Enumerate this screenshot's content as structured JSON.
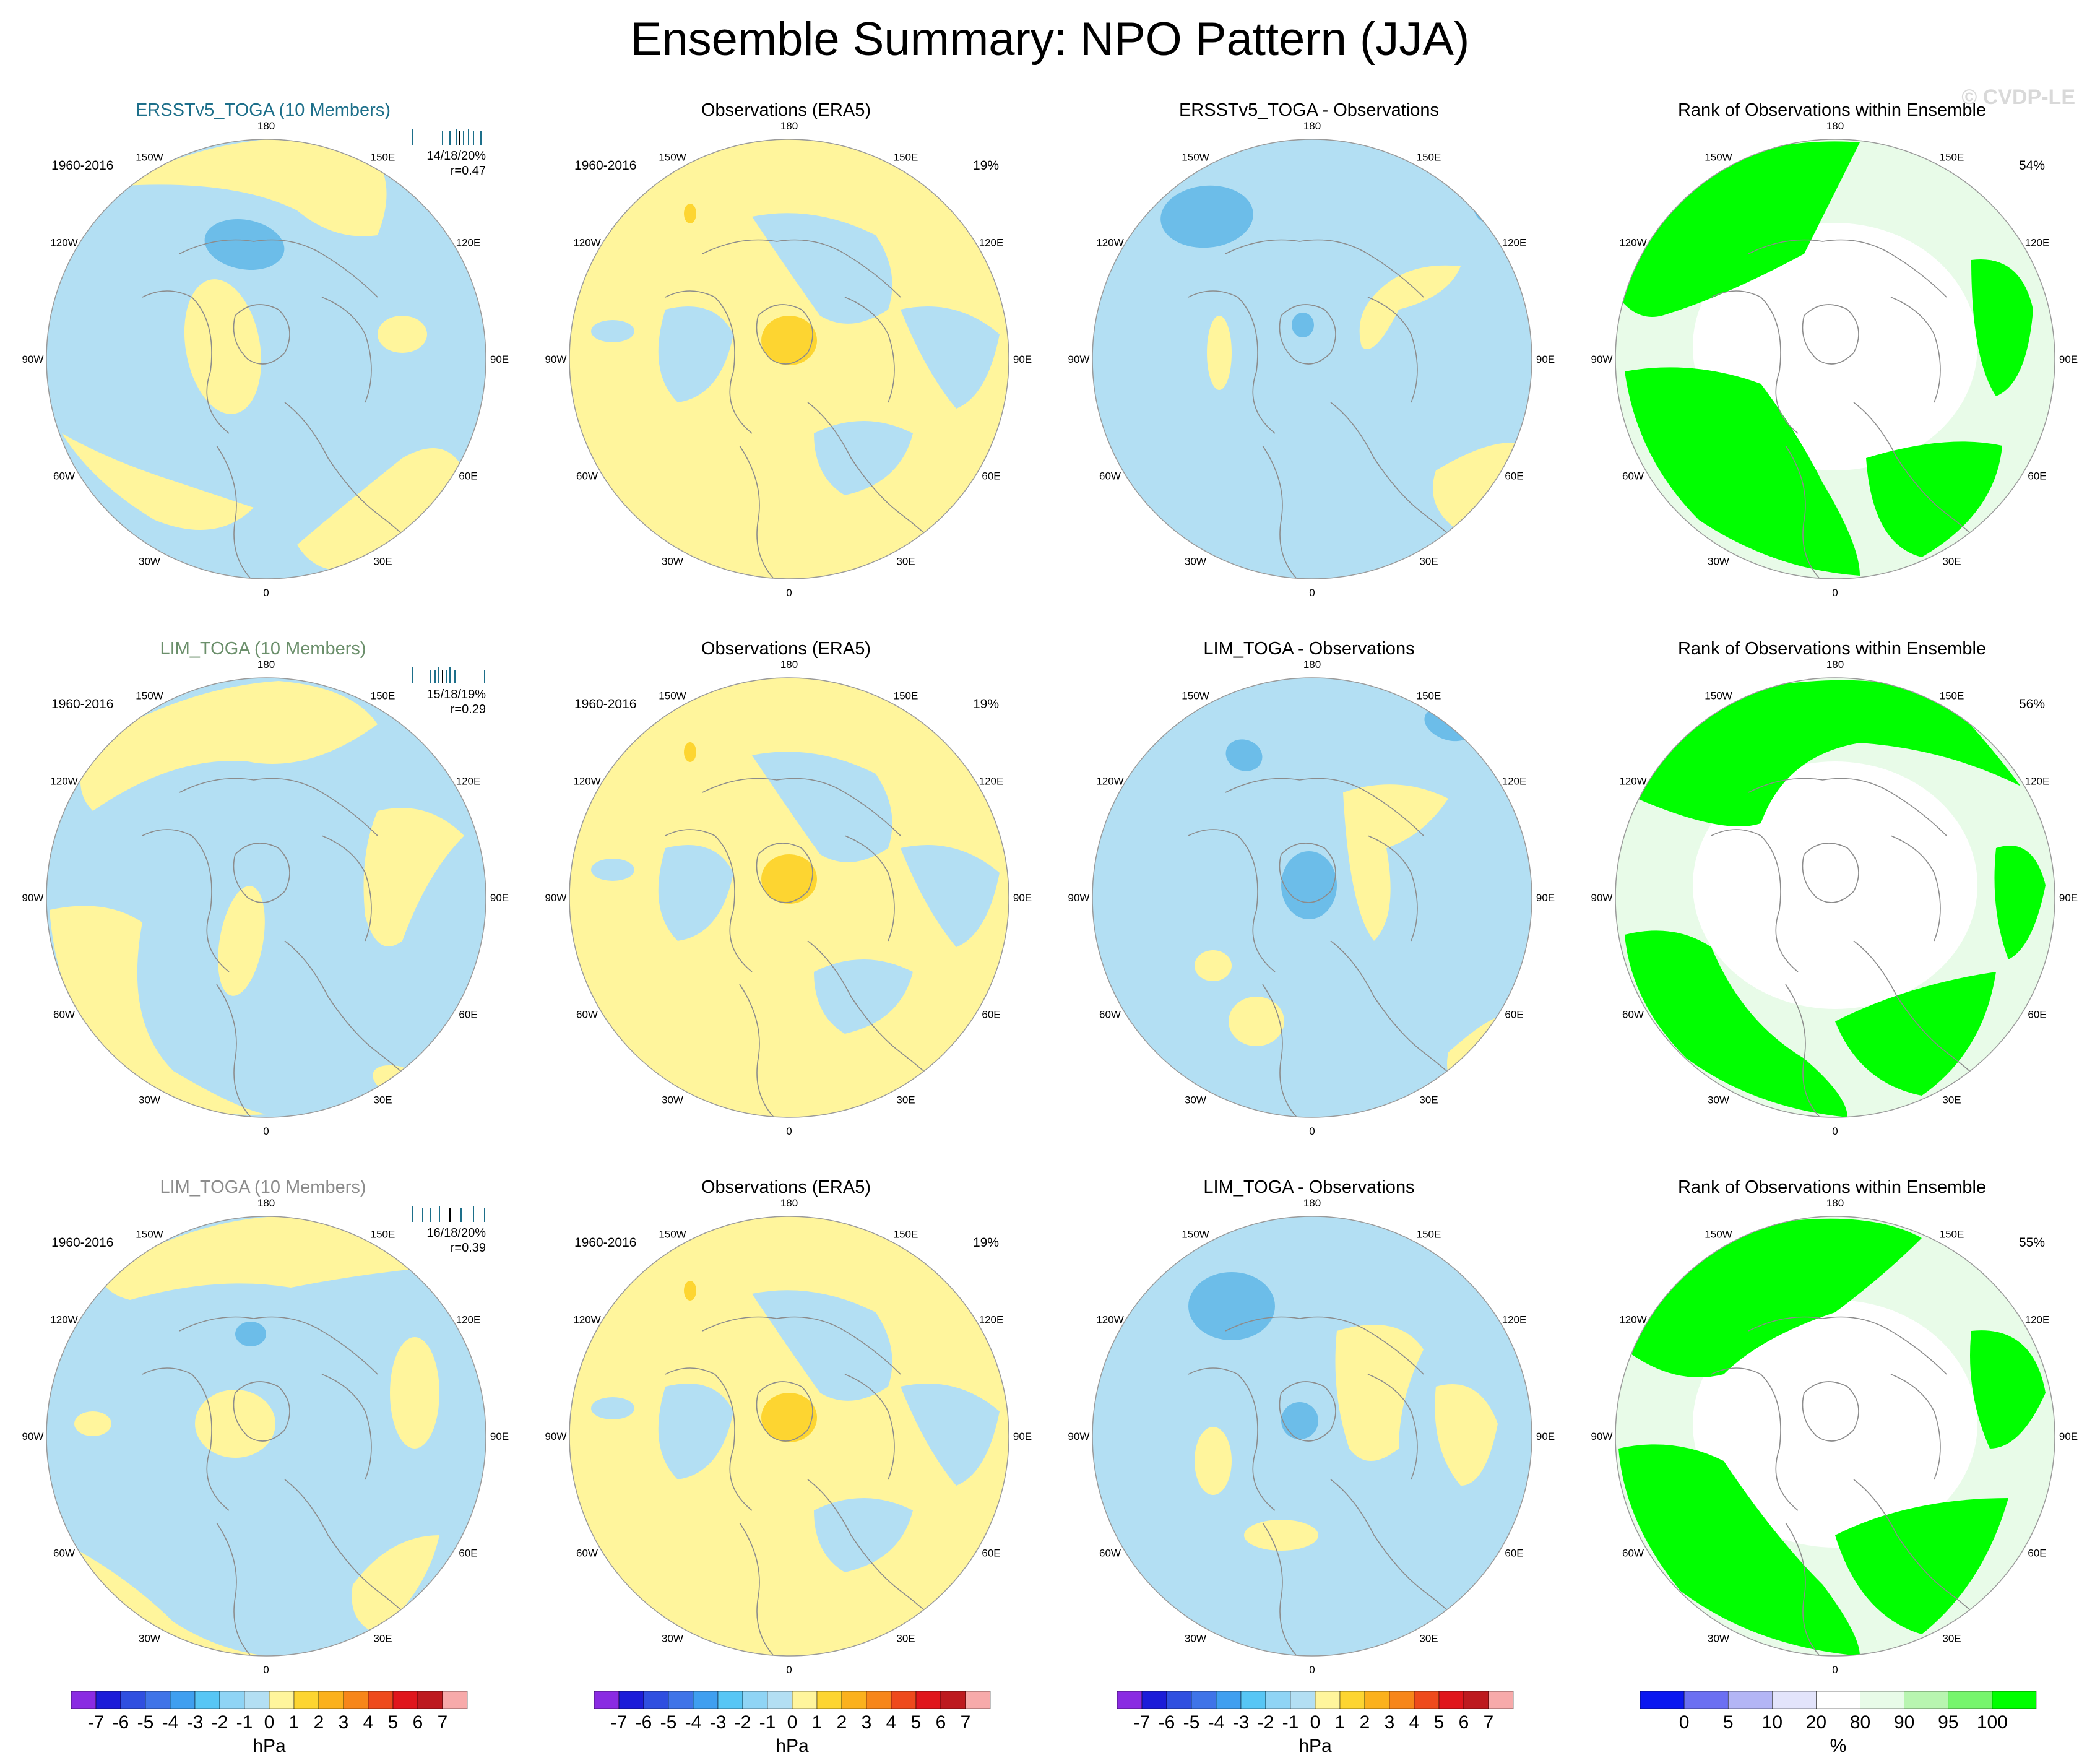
{
  "title": "Ensemble Summary: NPO Pattern (JJA)",
  "watermark": "© CVDP-LE",
  "longitude_labels": [
    "180",
    "150E",
    "120E",
    "90E",
    "60E",
    "30E",
    "0",
    "30W",
    "60W",
    "90W",
    "120W",
    "150W"
  ],
  "colors": {
    "negative": "#b3dff3",
    "negative_strong": "#6cbde9",
    "positive": "#fff59c",
    "positive_strong": "#fdd531",
    "rank_green": "#00ff00",
    "rank_light": "#e8fbe8",
    "land_line": "#8c8c8c"
  },
  "rows": [
    {
      "ensemble": {
        "title": "ERSSTv5_TOGA (10 Members)",
        "title_color": "#1d6f8a",
        "period": "1960-2016",
        "stats_line1": "14/18/20%",
        "stats_line2": "r=0.47"
      },
      "observations": {
        "title": "Observations (ERA5)",
        "period": "1960-2016",
        "pct": "19%"
      },
      "difference": {
        "title": "ERSSTv5_TOGA - Observations"
      },
      "rank": {
        "title": "Rank of Observations within Ensemble",
        "pct": "54%"
      }
    },
    {
      "ensemble": {
        "title": "LIM_TOGA (10 Members)",
        "title_color": "#6b8f6b",
        "period": "1960-2016",
        "stats_line1": "15/18/19%",
        "stats_line2": "r=0.29"
      },
      "observations": {
        "title": "Observations (ERA5)",
        "period": "1960-2016",
        "pct": "19%"
      },
      "difference": {
        "title": "LIM_TOGA - Observations"
      },
      "rank": {
        "title": "Rank of Observations within Ensemble",
        "pct": "56%"
      }
    },
    {
      "ensemble": {
        "title": "LIM_TOGA (10 Members)",
        "title_color": "#8c8c8c",
        "period": "1960-2016",
        "stats_line1": "16/18/20%",
        "stats_line2": "r=0.39"
      },
      "observations": {
        "title": "Observations (ERA5)",
        "period": "1960-2016",
        "pct": "19%"
      },
      "difference": {
        "title": "LIM_TOGA - Observations"
      },
      "rank": {
        "title": "Rank of Observations within Ensemble",
        "pct": "55%"
      }
    }
  ],
  "colorbar_hpa": {
    "labels": [
      "-7",
      "-6",
      "-5",
      "-4",
      "-3",
      "-2",
      "-1",
      "0",
      "1",
      "2",
      "3",
      "4",
      "5",
      "6",
      "7"
    ],
    "colors": [
      "#8a2be2",
      "#1c1cd8",
      "#2f4fe0",
      "#3f74e8",
      "#3f9ff0",
      "#57c6f5",
      "#8fd4f5",
      "#b3dff3",
      "#fff59c",
      "#fdd531",
      "#fbb11d",
      "#f7861a",
      "#ee4a1c",
      "#e0161c",
      "#bd1a1f",
      "#f7aaaa"
    ],
    "unit": "hPa"
  },
  "colorbar_rank": {
    "labels": [
      "0",
      "5",
      "10",
      "20",
      "80",
      "90",
      "95",
      "100"
    ],
    "colors": [
      "#0a17f0",
      "#6b6ff2",
      "#b3b5f5",
      "#e3e4fb",
      "#ffffff",
      "#e8fbe8",
      "#b8f5b0",
      "#76f56d",
      "#00ff00"
    ],
    "unit": "%"
  },
  "chart_data": {
    "type": "heatmap",
    "title": "Ensemble Summary: NPO Pattern (JJA)",
    "panel_grid": "3 rows x 4 columns of north polar stereographic maps",
    "period": "1960-2016",
    "rows": [
      {
        "ensemble": "ERSSTv5_TOGA (10 Members)",
        "stats": "14/18/20%",
        "r": 0.47,
        "obs_pct": 19,
        "rank_pct": 54
      },
      {
        "ensemble": "LIM_TOGA (10 Members)",
        "stats": "15/18/19%",
        "r": 0.29,
        "obs_pct": 19,
        "rank_pct": 56
      },
      {
        "ensemble": "LIM_TOGA (10 Members)",
        "stats": "16/18/20%",
        "r": 0.39,
        "obs_pct": 19,
        "rank_pct": 55
      }
    ],
    "colorbar_hpa_range": [
      -7,
      7
    ],
    "colorbar_rank_range": [
      0,
      100
    ]
  }
}
